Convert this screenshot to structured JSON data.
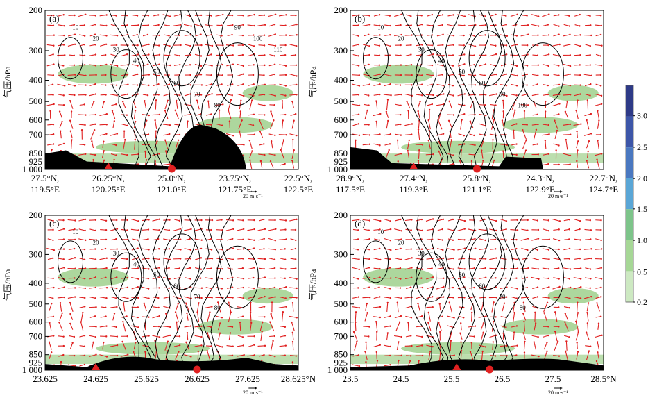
{
  "chart_data": [
    {
      "type": "contour",
      "panel_label": "(a)",
      "ylabel": "气压/hPa",
      "y_ticks": [
        "200",
        "300",
        "400",
        "500",
        "600",
        "700",
        "850",
        "925",
        "1 000"
      ],
      "x_ticks": [
        [
          "27.5°N,",
          "119.5°E"
        ],
        [
          "26.25°N,",
          "120.25°E"
        ],
        [
          "25.0°N,",
          "121.0°E"
        ],
        [
          "23.75°N,",
          "121.75°E"
        ],
        [
          "22.5°N,",
          "122.5°E"
        ]
      ],
      "vector_scale_label": "20 m·s⁻¹",
      "contour_labels": [
        "10",
        "20",
        "30",
        "40",
        "50",
        "60",
        "70",
        "80",
        "90",
        "100",
        "110"
      ],
      "markers": [
        {
          "shape": "triangle",
          "x_index": 1
        },
        {
          "shape": "circle",
          "x_index": 2
        }
      ]
    },
    {
      "type": "contour",
      "panel_label": "(b)",
      "ylabel": "气压/hPa",
      "y_ticks": [
        "200",
        "300",
        "400",
        "500",
        "600",
        "700",
        "850",
        "925",
        "1 000"
      ],
      "x_ticks": [
        [
          "28.9°N,",
          "117.5°E"
        ],
        [
          "27.4°N,",
          "119.3°E"
        ],
        [
          "25.8°N,",
          "121.1°E"
        ],
        [
          "24.3°N,",
          "122.9°E"
        ],
        [
          "22.7°N,",
          "124.7°E"
        ]
      ],
      "vector_scale_label": "20 m·s⁻¹",
      "contour_labels": [
        "10",
        "20",
        "30",
        "40",
        "50",
        "60",
        "90",
        "100"
      ],
      "markers": [
        {
          "shape": "triangle",
          "x_index": 1
        },
        {
          "shape": "circle",
          "x_index": 2
        }
      ]
    },
    {
      "type": "contour",
      "panel_label": "(c)",
      "ylabel": "气压/hPa",
      "y_ticks": [
        "200",
        "300",
        "400",
        "500",
        "600",
        "700",
        "850",
        "925",
        "1 000"
      ],
      "x_ticks": [
        [
          "23.625"
        ],
        [
          "24.625"
        ],
        [
          "25.625"
        ],
        [
          "26.625"
        ],
        [
          "27.625"
        ],
        [
          "28.625°N"
        ]
      ],
      "vector_scale_label": "20 m·s⁻¹",
      "contour_labels": [
        "10",
        "20",
        "30",
        "40",
        "50",
        "60",
        "70",
        "80"
      ],
      "markers": [
        {
          "shape": "triangle",
          "x": 24.625
        },
        {
          "shape": "circle",
          "x": 26.625
        }
      ]
    },
    {
      "type": "contour",
      "panel_label": "(d)",
      "ylabel": "气压/hPa",
      "y_ticks": [
        "200",
        "300",
        "400",
        "500",
        "600",
        "700",
        "850",
        "925",
        "1 000"
      ],
      "x_ticks": [
        [
          "23.5"
        ],
        [
          "24.5"
        ],
        [
          "25.5"
        ],
        [
          "26.5"
        ],
        [
          "27.5"
        ],
        [
          "28.5°N"
        ]
      ],
      "vector_scale_label": "20 m·s⁻¹",
      "contour_labels": [
        "10",
        "20",
        "30",
        "40",
        "50",
        "60",
        "70",
        "80"
      ],
      "markers": [
        {
          "shape": "triangle",
          "x": 25.6
        },
        {
          "shape": "circle",
          "x": 26.25
        }
      ]
    }
  ],
  "colorbar": {
    "ticks": [
      "3.0",
      "2.5",
      "2.0",
      "1.5",
      "1.0",
      "0.5",
      "0.2"
    ],
    "colors": [
      "#2e3a87",
      "#3d56a8",
      "#4a78c0",
      "#5aa6d6",
      "#7dc48a",
      "#a6d796",
      "#cde9c2"
    ]
  },
  "colors": {
    "vector": "#e02020",
    "terrain": "#000000",
    "marker": "#e02020",
    "contour": "#000000",
    "shade": "#9fd08c"
  }
}
